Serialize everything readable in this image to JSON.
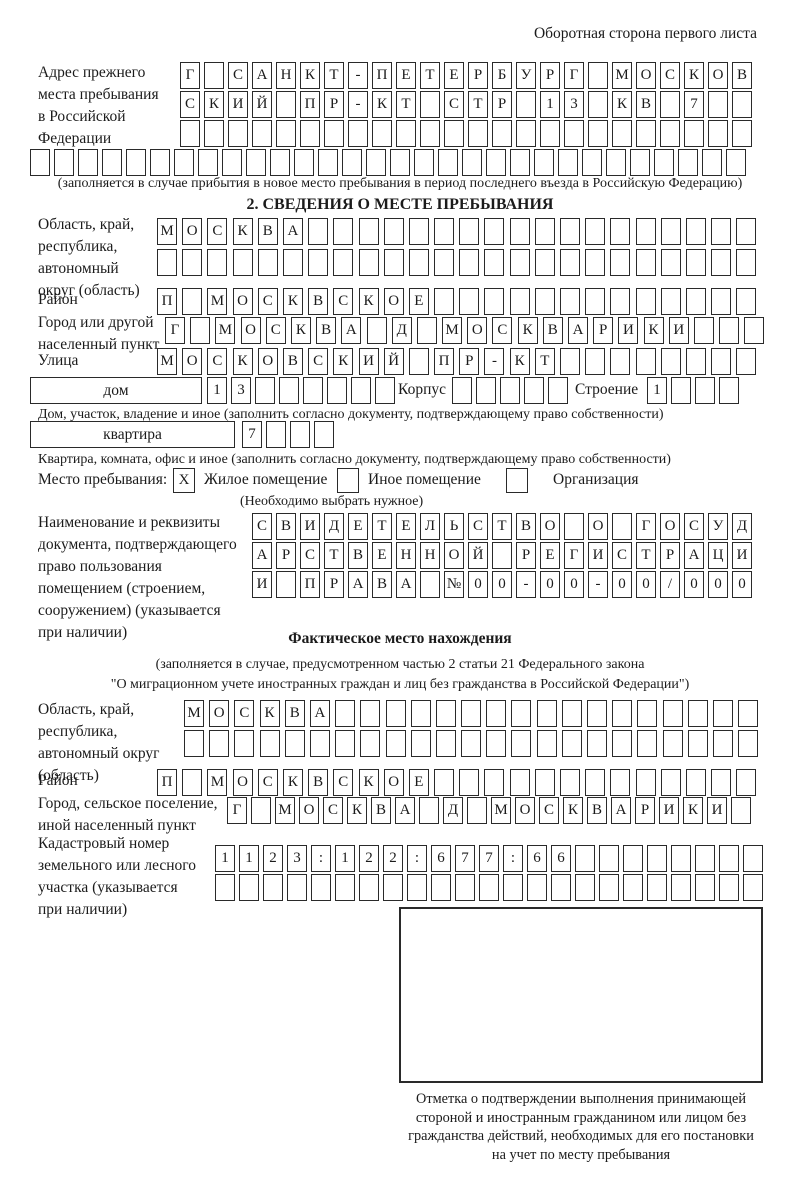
{
  "page": {
    "corner_note": "Оборотная сторона первого листа"
  },
  "prev_address": {
    "label": "Адрес прежнего\nместа пребывания\nв Российской\nФедерации",
    "note": "(заполняется в случае прибытия в новое место пребывания в период последнего въезда в Российскую Федерацию)",
    "rows": [
      [
        "Г",
        "",
        "С",
        "А",
        "Н",
        "К",
        "Т",
        "-",
        "П",
        "Е",
        "Т",
        "Е",
        "Р",
        "Б",
        "У",
        "Р",
        "Г",
        "",
        "М",
        "О",
        "С",
        "К",
        "О",
        "В"
      ],
      [
        "С",
        "К",
        "И",
        "Й",
        "",
        "П",
        "Р",
        "-",
        "К",
        "Т",
        "",
        "С",
        "Т",
        "Р",
        "",
        "1",
        "3",
        "",
        "К",
        "В",
        "",
        "7",
        "",
        ""
      ],
      [
        "",
        "",
        "",
        "",
        "",
        "",
        "",
        "",
        "",
        "",
        "",
        "",
        "",
        "",
        "",
        "",
        "",
        "",
        "",
        "",
        "",
        "",
        "",
        ""
      ],
      [
        "",
        "",
        "",
        "",
        "",
        "",
        "",
        "",
        "",
        "",
        "",
        "",
        "",
        "",
        "",
        "",
        "",
        "",
        "",
        "",
        "",
        "",
        "",
        "",
        "",
        "",
        "",
        "",
        "",
        ""
      ]
    ]
  },
  "section2": {
    "title": "2. СВЕДЕНИЯ О МЕСТЕ ПРЕБЫВАНИЯ",
    "region": {
      "label": "Область, край,\nреспублика,\nавтономный\nокруг (область)",
      "rows": [
        [
          "М",
          "О",
          "С",
          "К",
          "В",
          "А",
          "",
          "",
          "",
          "",
          "",
          "",
          "",
          "",
          "",
          "",
          "",
          "",
          "",
          "",
          "",
          "",
          "",
          ""
        ],
        [
          "",
          "",
          "",
          "",
          "",
          "",
          "",
          "",
          "",
          "",
          "",
          "",
          "",
          "",
          "",
          "",
          "",
          "",
          "",
          "",
          "",
          "",
          "",
          ""
        ]
      ]
    },
    "district": {
      "label": "Район",
      "cells": [
        "П",
        "",
        "М",
        "О",
        "С",
        "К",
        "В",
        "С",
        "К",
        "О",
        "Е",
        "",
        "",
        "",
        "",
        "",
        "",
        "",
        "",
        "",
        "",
        "",
        "",
        ""
      ]
    },
    "city": {
      "label": "Город или другой\nнаселенный пункт",
      "cells": [
        "Г",
        "",
        "М",
        "О",
        "С",
        "К",
        "В",
        "А",
        "",
        "Д",
        "",
        "М",
        "О",
        "С",
        "К",
        "В",
        "А",
        "Р",
        "И",
        "К",
        "И",
        "",
        "",
        ""
      ]
    },
    "street": {
      "label": "Улица",
      "cells": [
        "М",
        "О",
        "С",
        "К",
        "О",
        "В",
        "С",
        "К",
        "И",
        "Й",
        "",
        "П",
        "Р",
        "-",
        "К",
        "Т",
        "",
        "",
        "",
        "",
        "",
        "",
        "",
        ""
      ]
    },
    "house": {
      "box_label": "дом",
      "number_cells": [
        "1",
        "3",
        "",
        "",
        "",
        "",
        "",
        ""
      ],
      "korpus_label": "Корпус",
      "korpus_cells": [
        "",
        "",
        "",
        "",
        ""
      ],
      "stroenie_label": "Строение",
      "stroenie_cells": [
        "1",
        "",
        "",
        ""
      ],
      "note": "Дом, участок, владение и иное (заполнить согласно документу, подтверждающему право собственности)"
    },
    "apartment": {
      "box_label": "квартира",
      "cells": [
        "7",
        "",
        "",
        ""
      ],
      "note": "Квартира, комната, офис и иное (заполнить согласно документу, подтверждающему право собственности)"
    },
    "stay_type": {
      "label": "Место пребывания:",
      "options": [
        {
          "label": "Жилое помещение",
          "mark": "X"
        },
        {
          "label": "Иное помещение",
          "mark": ""
        },
        {
          "label": "Организация",
          "mark": ""
        }
      ],
      "note": "(Необходимо выбрать нужное)"
    },
    "document": {
      "label": "Наименование и реквизиты\nдокумента, подтверждающего\nправо пользования\nпомещением (строением,\nсооружением) (указывается\nпри наличии)",
      "rows": [
        [
          "С",
          "В",
          "И",
          "Д",
          "Е",
          "Т",
          "Е",
          "Л",
          "Ь",
          "С",
          "Т",
          "В",
          "О",
          "",
          "О",
          "",
          "Г",
          "О",
          "С",
          "У",
          "Д"
        ],
        [
          "А",
          "Р",
          "С",
          "Т",
          "В",
          "Е",
          "Н",
          "Н",
          "О",
          "Й",
          "",
          "Р",
          "Е",
          "Г",
          "И",
          "С",
          "Т",
          "Р",
          "А",
          "Ц",
          "И"
        ],
        [
          "И",
          "",
          "П",
          "Р",
          "А",
          "В",
          "А",
          "",
          "№",
          "0",
          "0",
          "-",
          "0",
          "0",
          "-",
          "0",
          "0",
          "/",
          "0",
          "0",
          "0"
        ]
      ]
    }
  },
  "actual_location": {
    "title": "Фактическое место нахождения",
    "note_line1": "(заполняется в случае, предусмотренном частью 2 статьи 21 Федерального закона",
    "note_line2": "\"О миграционном учете иностранных граждан и лиц без гражданства в Российской Федерации\")",
    "region": {
      "label": "Область, край,\nреспублика,\nавтономный округ\n(область)",
      "rows": [
        [
          "М",
          "О",
          "С",
          "К",
          "В",
          "А",
          "",
          "",
          "",
          "",
          "",
          "",
          "",
          "",
          "",
          "",
          "",
          "",
          "",
          "",
          "",
          "",
          ""
        ],
        [
          "",
          "",
          "",
          "",
          "",
          "",
          "",
          "",
          "",
          "",
          "",
          "",
          "",
          "",
          "",
          "",
          "",
          "",
          "",
          "",
          "",
          "",
          ""
        ]
      ]
    },
    "district": {
      "label": "Район",
      "cells": [
        "П",
        "",
        "М",
        "О",
        "С",
        "К",
        "В",
        "С",
        "К",
        "О",
        "Е",
        "",
        "",
        "",
        "",
        "",
        "",
        "",
        "",
        "",
        "",
        "",
        "",
        ""
      ]
    },
    "city": {
      "label": "Город, сельское поселение,\nиной населенный пункт",
      "cells": [
        "Г",
        "",
        "М",
        "О",
        "С",
        "К",
        "В",
        "А",
        "",
        "Д",
        "",
        "М",
        "О",
        "С",
        "К",
        "В",
        "А",
        "Р",
        "И",
        "К",
        "И",
        ""
      ]
    },
    "cadastral": {
      "label": "Кадастровый номер\nземельного или лесного\nучастка (указывается\nпри наличии)",
      "rows": [
        [
          "1",
          "1",
          "2",
          "3",
          ":",
          "1",
          "2",
          "2",
          ":",
          "6",
          "7",
          "7",
          ":",
          "6",
          "6",
          "",
          "",
          "",
          "",
          "",
          "",
          "",
          ""
        ],
        [
          "",
          "",
          "",
          "",
          "",
          "",
          "",
          "",
          "",
          "",
          "",
          "",
          "",
          "",
          "",
          "",
          "",
          "",
          "",
          "",
          "",
          "",
          ""
        ]
      ]
    },
    "stamp_caption": "Отметка о подтверждении выполнения принимающей\nстороной и иностранным гражданином или лицом без\nгражданства действий, необходимых для его постановки\nна учет по месту пребывания"
  }
}
